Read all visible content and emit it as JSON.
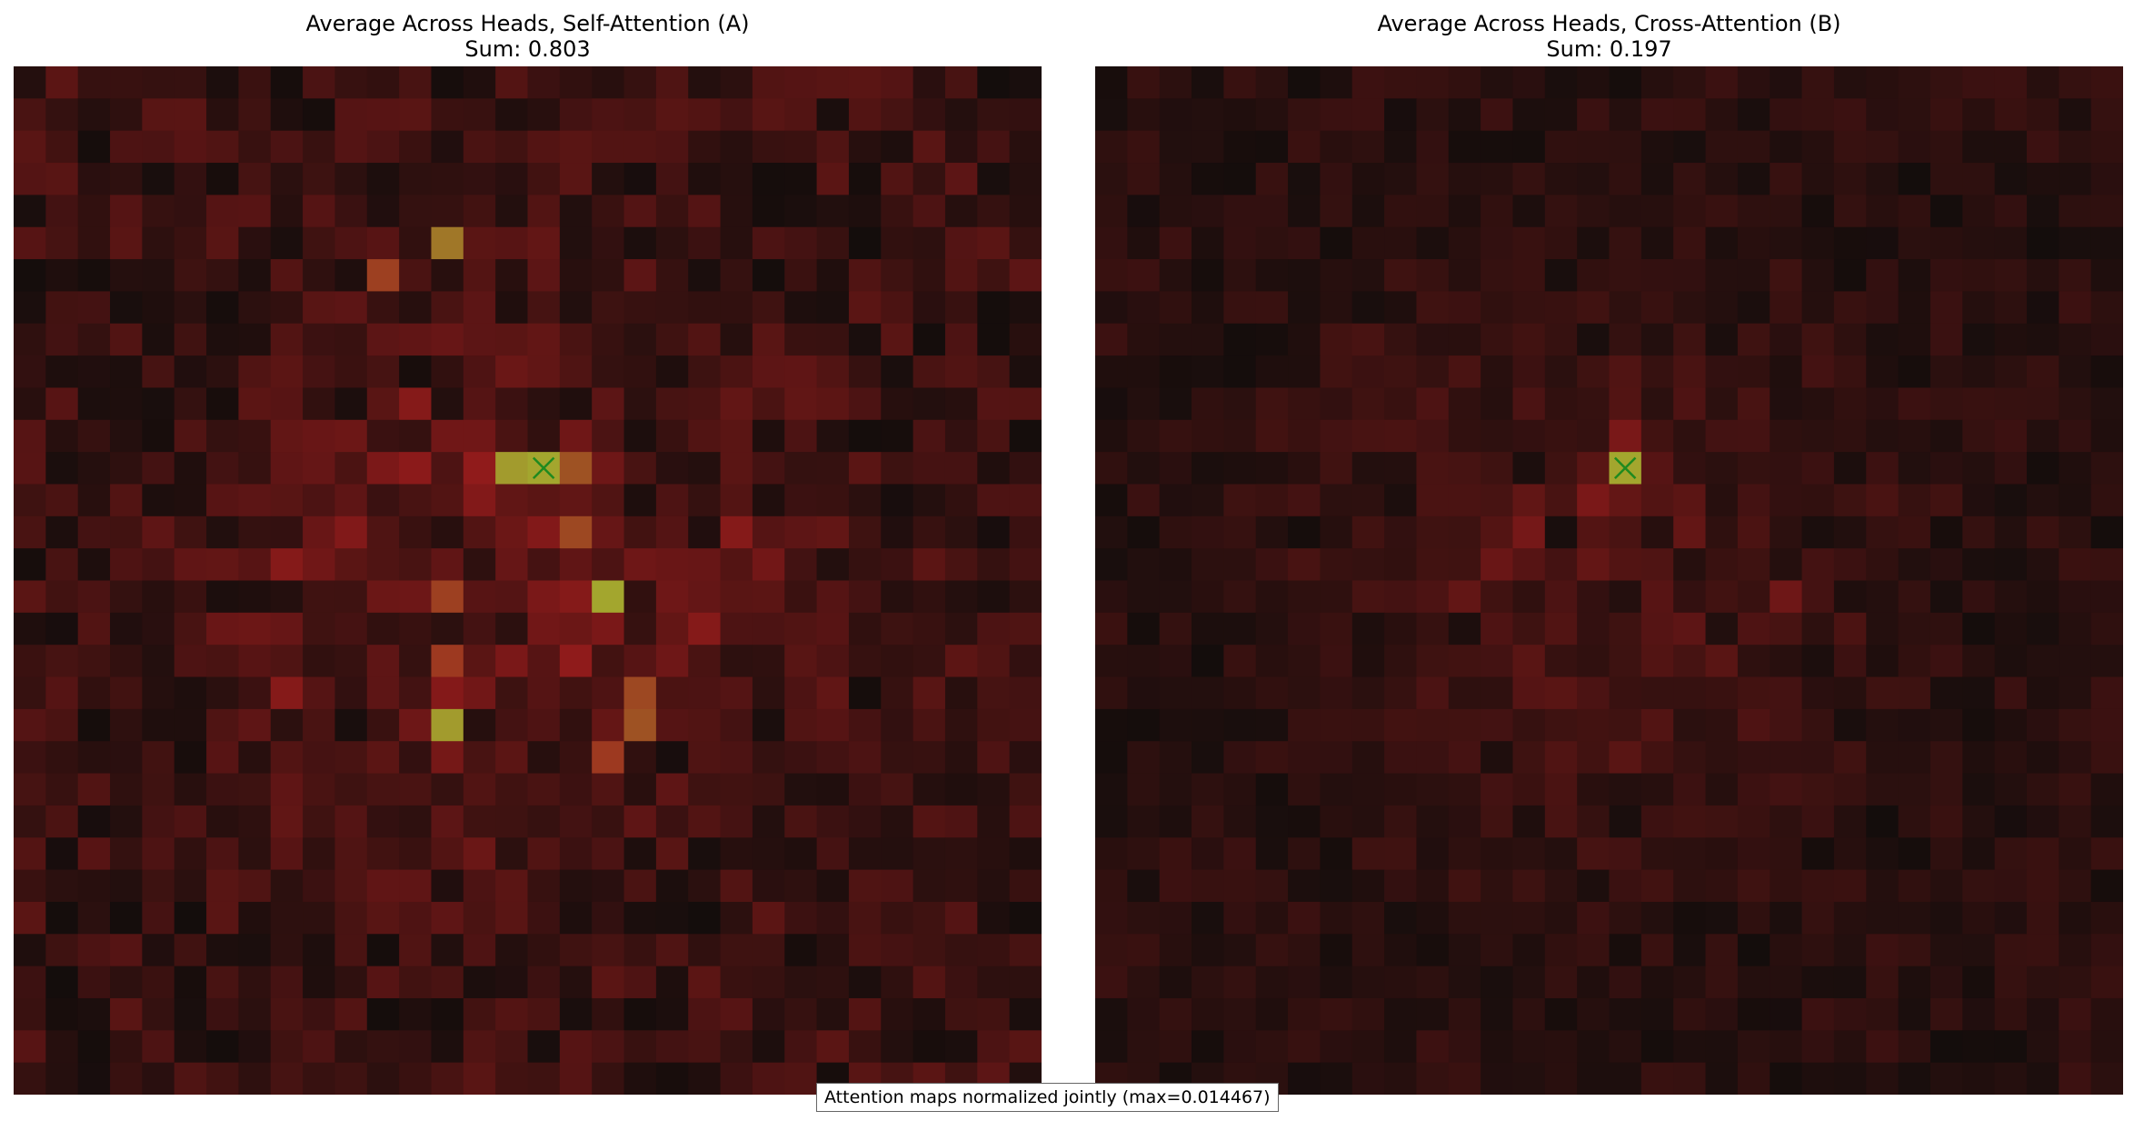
{
  "chart_data": [
    {
      "type": "heatmap",
      "title": "Average Across Heads, Self-Attention (A)",
      "subtitle": "Sum: 0.803",
      "grid_size": [
        32,
        32
      ],
      "colormap": "dark-red-to-yellow overlay on grayscale",
      "color_scale": {
        "low": "#140d0c",
        "mid": "#9b1c1c",
        "high": "#a3ad2f"
      },
      "query_marker": {
        "row": 12,
        "col": 16,
        "symbol": "x",
        "color": "#1f8a1f"
      },
      "highlights": [
        {
          "row": 5,
          "col": 13,
          "value": 0.85
        },
        {
          "row": 6,
          "col": 11,
          "value": 0.7
        },
        {
          "row": 12,
          "col": 15,
          "value": 0.95
        },
        {
          "row": 12,
          "col": 17,
          "value": 0.75
        },
        {
          "row": 14,
          "col": 17,
          "value": 0.72
        },
        {
          "row": 16,
          "col": 13,
          "value": 0.7
        },
        {
          "row": 16,
          "col": 18,
          "value": 0.98
        },
        {
          "row": 18,
          "col": 13,
          "value": 0.68
        },
        {
          "row": 19,
          "col": 19,
          "value": 0.72
        },
        {
          "row": 20,
          "col": 13,
          "value": 0.95
        },
        {
          "row": 20,
          "col": 19,
          "value": 0.75
        },
        {
          "row": 21,
          "col": 18,
          "value": 0.68
        },
        {
          "row": 12,
          "col": 14,
          "value": 0.55
        },
        {
          "row": 12,
          "col": 16,
          "value": 0.98
        },
        {
          "row": 10,
          "col": 12,
          "value": 0.5
        },
        {
          "row": 15,
          "col": 8,
          "value": 0.5
        },
        {
          "row": 19,
          "col": 8,
          "value": 0.5
        },
        {
          "row": 14,
          "col": 22,
          "value": 0.5
        },
        {
          "row": 17,
          "col": 21,
          "value": 0.5
        }
      ]
    },
    {
      "type": "heatmap",
      "title": "Average Across Heads, Cross-Attention (B)",
      "subtitle": "Sum: 0.197",
      "grid_size": [
        32,
        32
      ],
      "colormap": "dark-red-to-yellow overlay on grayscale",
      "color_scale": {
        "low": "#140d0c",
        "mid": "#9b1c1c",
        "high": "#a3ad2f"
      },
      "query_marker": {
        "row": 12,
        "col": 16,
        "symbol": "x",
        "color": "#1f8a1f"
      },
      "highlights": [
        {
          "row": 12,
          "col": 16,
          "value": 0.98
        },
        {
          "row": 11,
          "col": 16,
          "value": 0.45
        },
        {
          "row": 13,
          "col": 16,
          "value": 0.35
        },
        {
          "row": 16,
          "col": 21,
          "value": 0.4
        },
        {
          "row": 12,
          "col": 15,
          "value": 0.3
        }
      ]
    }
  ],
  "footer": {
    "normalization_note": "Attention maps normalized jointly (max=0.014467)"
  }
}
